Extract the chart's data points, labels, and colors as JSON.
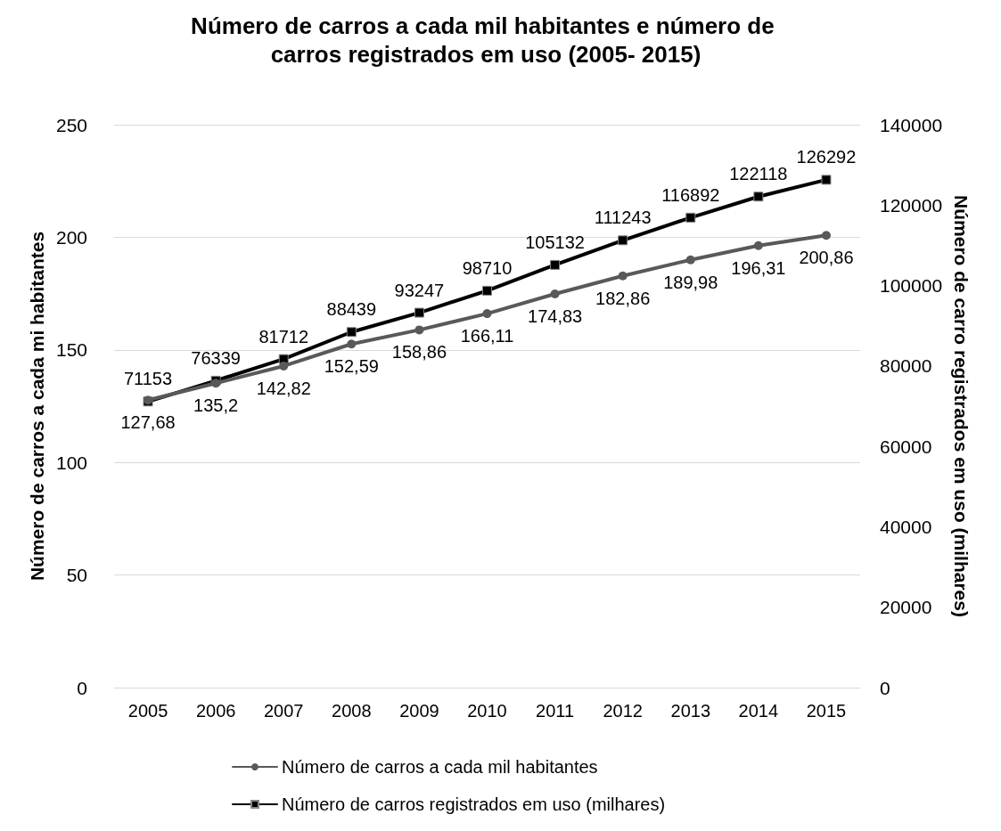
{
  "chart_data": {
    "type": "line",
    "title": "Número de carros a cada mil habitantes e número de carros registrados em uso (2005- 2015)",
    "ylabel": "Número de carros a cada mi habitantes",
    "y2label": "Número de carro registrados em uso (milhares)",
    "categories": [
      "2005",
      "2006",
      "2007",
      "2008",
      "2009",
      "2010",
      "2011",
      "2012",
      "2013",
      "2014",
      "2015"
    ],
    "series": [
      {
        "name": "Número de carros a cada mil habitantes",
        "color": "#595959",
        "marker": "circle",
        "values": [
          127.68,
          135.2,
          142.82,
          152.59,
          158.86,
          166.11,
          174.83,
          182.86,
          189.98,
          196.31,
          200.86
        ],
        "value_labels": [
          "127,68",
          "135,2",
          "142,82",
          "152,59",
          "158,86",
          "166,11",
          "174,83",
          "182,86",
          "189,98",
          "196,31",
          "200,86"
        ]
      },
      {
        "name": "Número de carros registrados em uso (milhares)",
        "color": "#000000",
        "marker": "square",
        "axis": "y2",
        "values": [
          71153,
          76339,
          81712,
          88439,
          93247,
          98710,
          105132,
          111243,
          116892,
          122118,
          126292
        ],
        "value_labels": [
          "71153",
          "76339",
          "81712",
          "88439",
          "93247",
          "98710",
          "105132",
          "111243",
          "116892",
          "122118",
          "126292"
        ]
      }
    ],
    "ylim": [
      0,
      250
    ],
    "yticks": [
      0,
      50,
      100,
      150,
      200,
      250
    ],
    "y2lim": [
      0,
      140000
    ],
    "y2ticks": [
      0,
      20000,
      40000,
      60000,
      80000,
      100000,
      120000,
      140000
    ],
    "grid": "y",
    "legend": "bottom",
    "line_style": "solid"
  }
}
